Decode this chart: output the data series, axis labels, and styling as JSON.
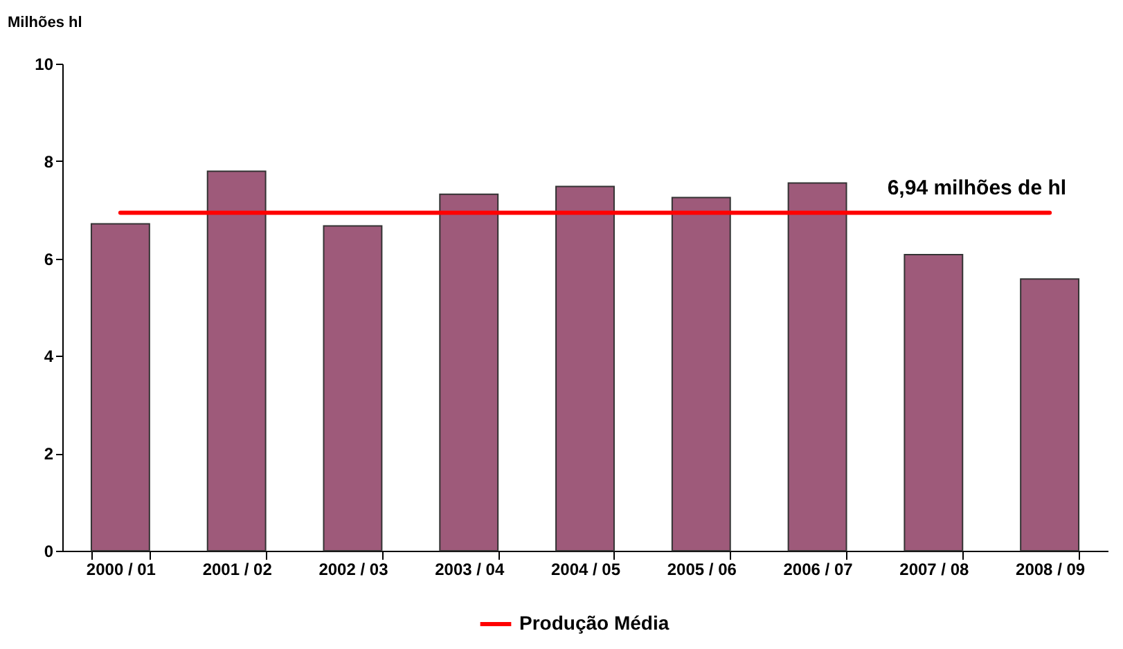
{
  "chart_data": {
    "type": "bar",
    "ylabel": "Milhões hl",
    "categories": [
      "2000 / 01",
      "2001 / 02",
      "2002 / 03",
      "2003 / 04",
      "2004 / 05",
      "2005 / 06",
      "2006 / 07",
      "2007 / 08",
      "2008 / 09"
    ],
    "series": [
      {
        "values": [
          6.71,
          7.79,
          6.67,
          7.32,
          7.48,
          7.25,
          7.55,
          6.08,
          5.58
        ],
        "color": "#9e5a7a"
      },
      {
        "name": "Produção Média",
        "type": "line",
        "color": "#ff0000",
        "values": [
          6.94,
          6.94,
          6.94,
          6.94,
          6.94,
          6.94,
          6.94,
          6.94,
          6.94
        ]
      }
    ],
    "ylim": [
      0,
      10
    ],
    "yticks": [
      0,
      2,
      4,
      6,
      8,
      10
    ],
    "grid": false,
    "legend": "bottom",
    "annotations": [
      "6,94 milhões de hl"
    ]
  }
}
